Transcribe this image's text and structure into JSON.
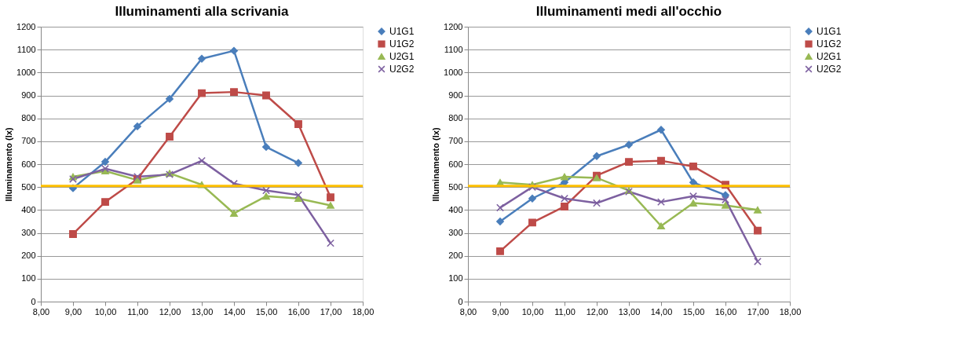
{
  "chart_data": [
    {
      "type": "line",
      "title": "Illuminamenti alla scrivania",
      "ylabel": "Illuminamento (lx)",
      "x": [
        9,
        10,
        11,
        12,
        13,
        14,
        15,
        16,
        17
      ],
      "xlim": [
        8,
        18
      ],
      "xticks": [
        {
          "value": 8,
          "label": "8,00"
        },
        {
          "value": 9,
          "label": "9,00"
        },
        {
          "value": 10,
          "label": "10,00"
        },
        {
          "value": 11,
          "label": "11,00"
        },
        {
          "value": 12,
          "label": "12,00"
        },
        {
          "value": 13,
          "label": "13,00"
        },
        {
          "value": 14,
          "label": "14,00"
        },
        {
          "value": 15,
          "label": "15,00"
        },
        {
          "value": 16,
          "label": "16,00"
        },
        {
          "value": 17,
          "label": "17,00"
        },
        {
          "value": 18,
          "label": "18,00"
        }
      ],
      "ylim": [
        0,
        1200
      ],
      "yticks": [
        0,
        100,
        200,
        300,
        400,
        500,
        600,
        700,
        800,
        900,
        1000,
        1100,
        1200
      ],
      "grid": "y",
      "legend": "right",
      "series": [
        {
          "name": "U1G1",
          "color": "#4a7ebb",
          "marker": "diamond",
          "values": [
            495,
            610,
            765,
            885,
            1060,
            1095,
            675,
            605,
            null
          ]
        },
        {
          "name": "U1G2",
          "color": "#be4b48",
          "marker": "square",
          "values": [
            295,
            435,
            535,
            720,
            910,
            915,
            900,
            775,
            455
          ]
        },
        {
          "name": "U2G1",
          "color": "#98b954",
          "marker": "triangle",
          "values": [
            545,
            570,
            530,
            560,
            510,
            385,
            460,
            450,
            420
          ]
        },
        {
          "name": "U2G2",
          "color": "#7d60a0",
          "marker": "cross",
          "values": [
            535,
            580,
            545,
            555,
            615,
            515,
            485,
            465,
            255
          ]
        }
      ],
      "ref_lines": [
        {
          "axis": "y",
          "value": 505,
          "color": "#ffc000"
        }
      ]
    },
    {
      "type": "line",
      "title": "Illuminamenti medi all'occhio",
      "ylabel": "Illuminamento (lx)",
      "x": [
        9,
        10,
        11,
        12,
        13,
        14,
        15,
        16,
        17
      ],
      "xlim": [
        8,
        18
      ],
      "xticks": [
        {
          "value": 8,
          "label": "8,00"
        },
        {
          "value": 9,
          "label": "9,00"
        },
        {
          "value": 10,
          "label": "10,00"
        },
        {
          "value": 11,
          "label": "11,00"
        },
        {
          "value": 12,
          "label": "12,00"
        },
        {
          "value": 13,
          "label": "13,00"
        },
        {
          "value": 14,
          "label": "14,00"
        },
        {
          "value": 15,
          "label": "15,00"
        },
        {
          "value": 16,
          "label": "16,00"
        },
        {
          "value": 17,
          "label": "17,00"
        },
        {
          "value": 18,
          "label": "18,00"
        }
      ],
      "ylim": [
        0,
        1200
      ],
      "yticks": [
        0,
        100,
        200,
        300,
        400,
        500,
        600,
        700,
        800,
        900,
        1000,
        1100,
        1200
      ],
      "grid": "y",
      "legend": "right",
      "series": [
        {
          "name": "U1G1",
          "color": "#4a7ebb",
          "marker": "diamond",
          "values": [
            350,
            450,
            520,
            635,
            685,
            750,
            520,
            465,
            null
          ]
        },
        {
          "name": "U1G2",
          "color": "#be4b48",
          "marker": "square",
          "values": [
            220,
            345,
            415,
            550,
            610,
            615,
            590,
            510,
            310
          ]
        },
        {
          "name": "U2G1",
          "color": "#98b954",
          "marker": "triangle",
          "values": [
            520,
            510,
            545,
            540,
            485,
            330,
            430,
            420,
            400
          ]
        },
        {
          "name": "U2G2",
          "color": "#7d60a0",
          "marker": "cross",
          "values": [
            410,
            500,
            450,
            430,
            480,
            435,
            460,
            445,
            175
          ]
        }
      ],
      "ref_lines": [
        {
          "axis": "y",
          "value": 505,
          "color": "#ffc000"
        }
      ]
    }
  ]
}
